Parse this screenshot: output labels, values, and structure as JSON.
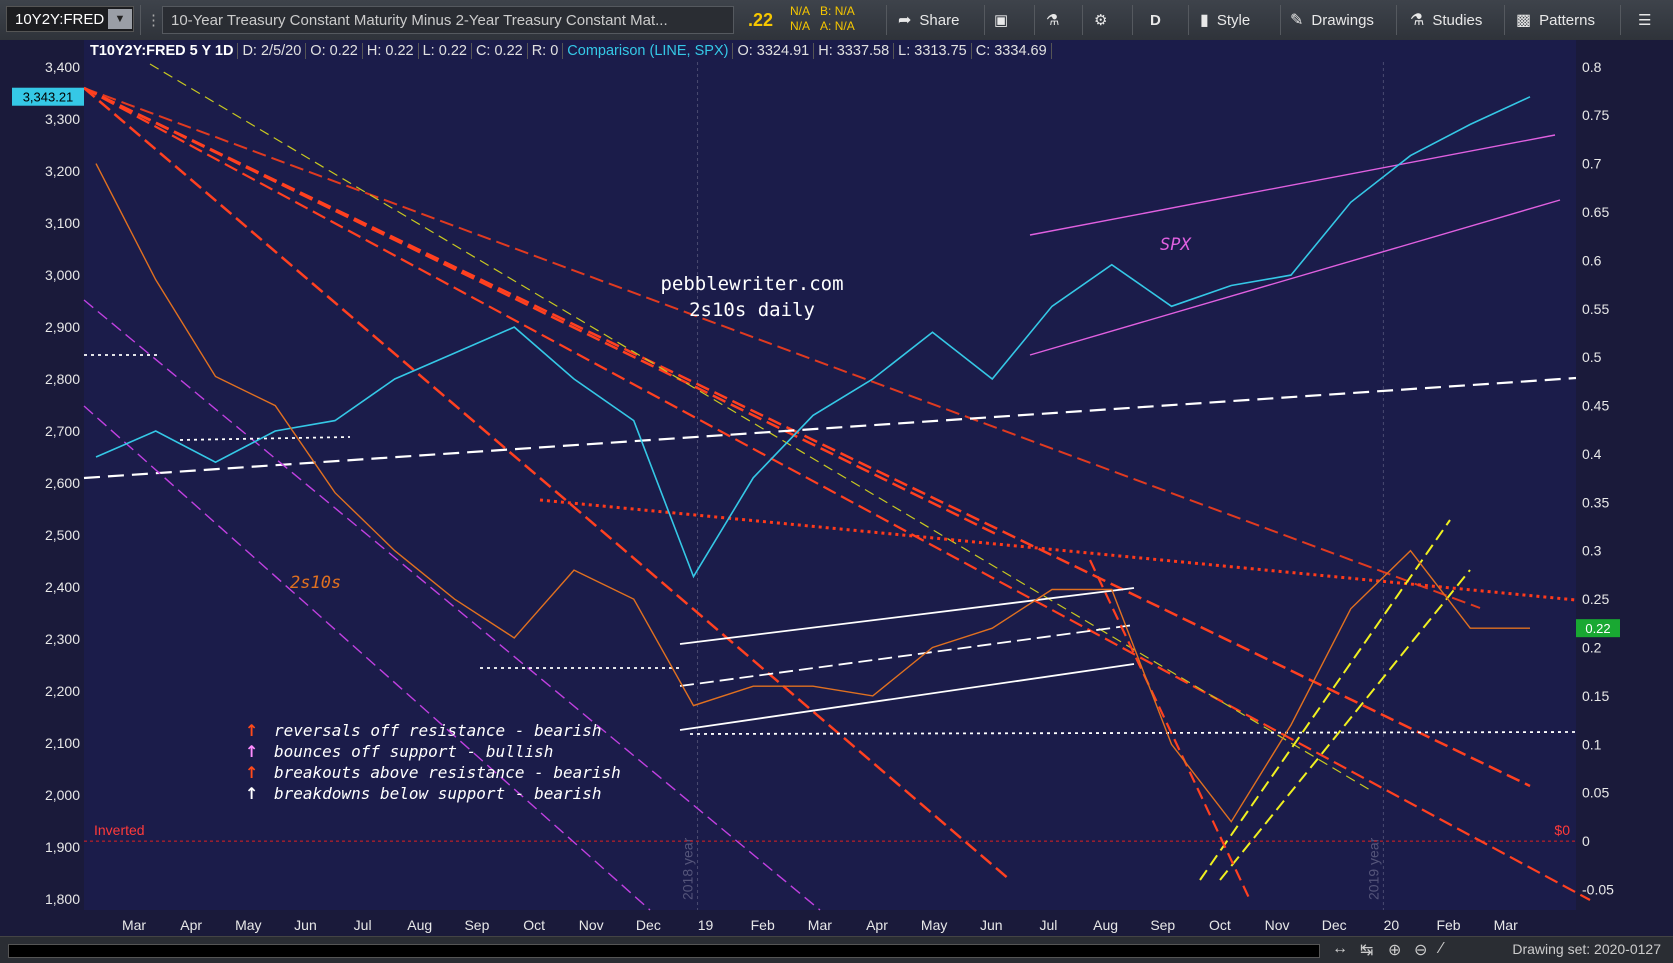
{
  "toolbar": {
    "symbol": "10Y2Y:FRED",
    "title": "10-Year Treasury Constant Maturity Minus 2-Year Treasury Constant Mat...",
    "last_value": ".22",
    "bid_label": "N/A",
    "bid2_label": "N/A",
    "bid_text": "B: N/A",
    "ask_text": "A: N/A",
    "share": "Share",
    "period": "D",
    "style": "Style",
    "drawings": "Drawings",
    "studies": "Studies",
    "patterns": "Patterns"
  },
  "header": {
    "symbol": "T10Y2Y:FRED 5 Y 1D",
    "date": "D: 2/5/20",
    "open": "O: 0.22",
    "high": "H: 0.22",
    "low": "L: 0.22",
    "close": "C: 0.22",
    "r": "R: 0",
    "comparison": "Comparison (LINE, SPX)",
    "c_open": "O: 3324.91",
    "c_high": "H: 3337.58",
    "c_low": "L: 3313.75",
    "c_close": "C: 3334.69"
  },
  "bottom": {
    "drawing_set": "Drawing set: 2020-0127"
  },
  "chart_data": {
    "type": "line",
    "title": "pebblewriter.com",
    "subtitle": "2s10s daily",
    "left_axis": {
      "ticks": [
        "3,400",
        "3,300",
        "3,200",
        "3,100",
        "3,000",
        "2,900",
        "2,800",
        "2,700",
        "2,600",
        "2,500",
        "2,400",
        "2,300",
        "2,200",
        "2,100",
        "2,000",
        "1,900",
        "1,800"
      ],
      "range": [
        1790,
        3410
      ]
    },
    "right_axis": {
      "ticks": [
        "0.8",
        "0.75",
        "0.7",
        "0.65",
        "0.6",
        "0.55",
        "0.5",
        "0.45",
        "0.4",
        "0.35",
        "0.3",
        "0.25",
        "0.2",
        "0.15",
        "0.1",
        "0.05",
        "0",
        "-0.05"
      ],
      "range": [
        -0.065,
        0.805
      ]
    },
    "x_ticks": [
      "Mar",
      "Apr",
      "May",
      "Jun",
      "Jul",
      "Aug",
      "Sep",
      "Oct",
      "Nov",
      "Dec",
      "19",
      "Feb",
      "Mar",
      "Apr",
      "May",
      "Jun",
      "Jul",
      "Aug",
      "Sep",
      "Oct",
      "Nov",
      "Dec",
      "20",
      "Feb",
      "Mar"
    ],
    "year_labels": [
      "2018 year",
      "2019 year"
    ],
    "spx_last_label": "3,343.21",
    "spread_last_label": "0.22",
    "inverted_label": "Inverted",
    "zero_label": "$0",
    "series": [
      {
        "name": "SPX",
        "color": "#35c8e6",
        "x": [
          "2018-02",
          "2018-03",
          "2018-04",
          "2018-05",
          "2018-06",
          "2018-07",
          "2018-08",
          "2018-09",
          "2018-10",
          "2018-11",
          "2018-12",
          "2019-01",
          "2019-02",
          "2019-03",
          "2019-04",
          "2019-05",
          "2019-06",
          "2019-07",
          "2019-08",
          "2019-09",
          "2019-10",
          "2019-11",
          "2019-12",
          "2020-01",
          "2020-02"
        ],
        "values": [
          2650,
          2700,
          2640,
          2700,
          2720,
          2800,
          2850,
          2900,
          2800,
          2720,
          2420,
          2610,
          2730,
          2800,
          2890,
          2800,
          2940,
          3020,
          2940,
          2980,
          3000,
          3140,
          3230,
          3290,
          3343
        ]
      },
      {
        "name": "2s10s",
        "color": "#e07020",
        "x": [
          "2018-02",
          "2018-03",
          "2018-04",
          "2018-05",
          "2018-06",
          "2018-07",
          "2018-08",
          "2018-09",
          "2018-10",
          "2018-11",
          "2018-12",
          "2019-01",
          "2019-02",
          "2019-03",
          "2019-04",
          "2019-05",
          "2019-06",
          "2019-07",
          "2019-08",
          "2019-09",
          "2019-10",
          "2019-11",
          "2019-12",
          "2020-01",
          "2020-02"
        ],
        "values": [
          0.7,
          0.58,
          0.48,
          0.45,
          0.36,
          0.3,
          0.25,
          0.21,
          0.28,
          0.25,
          0.14,
          0.16,
          0.16,
          0.15,
          0.2,
          0.22,
          0.26,
          0.26,
          0.1,
          0.02,
          0.12,
          0.24,
          0.3,
          0.22,
          0.22
        ]
      }
    ],
    "annotations": [
      "pebblewriter.com",
      "2s10s daily",
      "SPX",
      "2s10s"
    ],
    "legend": [
      {
        "text": "reversals off resistance - bearish",
        "color": "#ff4a1a"
      },
      {
        "text": "bounces off support - bullish",
        "color": "#ff8cff"
      },
      {
        "text": "breakouts above resistance - bearish",
        "color": "#ff4a1a"
      },
      {
        "text": "breakdowns below support - bearish",
        "color": "#ffffff"
      }
    ],
    "grid": true,
    "legend_placement": "bottom-left"
  }
}
